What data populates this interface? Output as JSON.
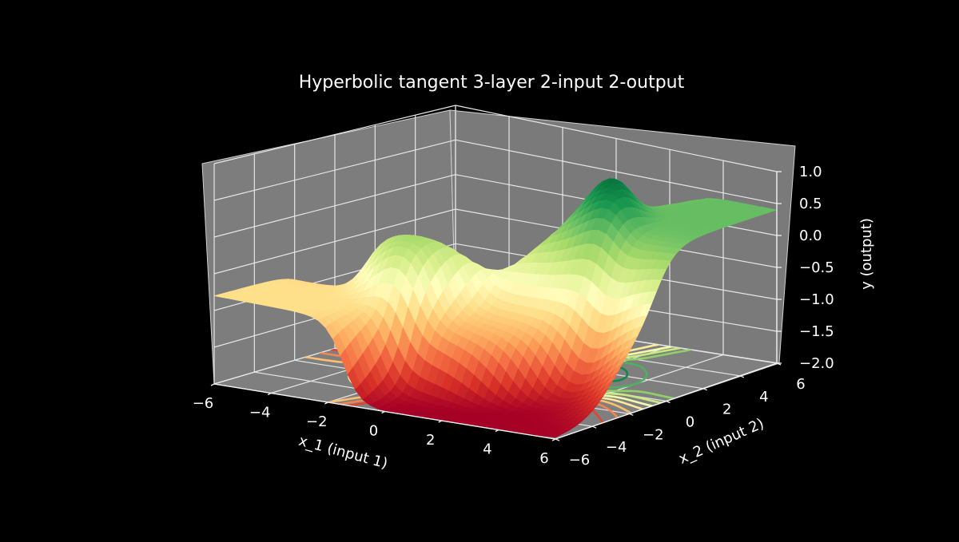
{
  "chart_data": {
    "type": "surface3d",
    "title": "Hyperbolic tangent 3-layer 2-input 2-output",
    "xlabel": "x_1 (input 1)",
    "ylabel": "x_2 (input 2)",
    "zlabel": "y (output)",
    "xlim": [
      -6,
      6
    ],
    "ylim": [
      -6,
      6
    ],
    "zlim": [
      -2.0,
      1.0
    ],
    "x_ticks": [
      "−6",
      "−4",
      "−2",
      "0",
      "2",
      "4",
      "6"
    ],
    "y_ticks": [
      "−6",
      "−4",
      "−2",
      "0",
      "2",
      "4",
      "6"
    ],
    "z_ticks": [
      "1.0",
      "0.5",
      "0.0",
      "−0.5",
      "−1.0",
      "−1.5",
      "−2.0"
    ],
    "colormap": "RdYlGn",
    "background": "#000000",
    "pane_color": "#808080",
    "grid": true,
    "contour_projection": "floor"
  }
}
